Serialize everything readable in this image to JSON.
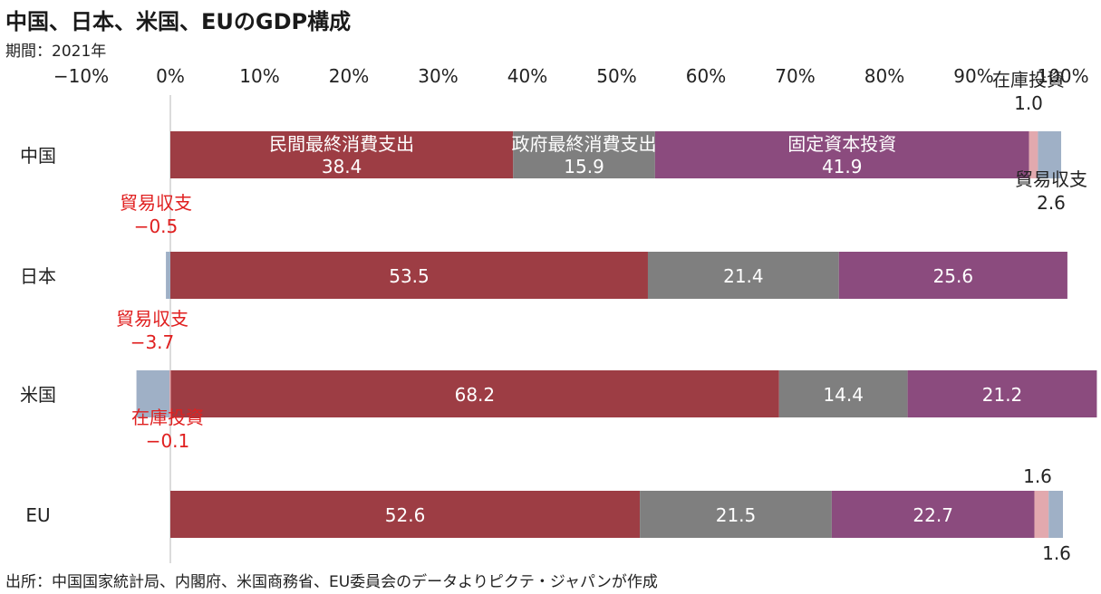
{
  "title": "中国、日本、米国、EUのGDP構成",
  "period": "期間：2021年",
  "source": "出所：中国国家統計局、内閣府、米国商務省、EU委員会のデータよりピクテ・ジャパンが作成",
  "colors": {
    "private_consumption": "#9d3d44",
    "government_consumption": "#7f7f7f",
    "fixed_investment": "#8b4b7e",
    "inventory": "#e2a9ae",
    "trade": "#9fb0c6",
    "axis": "#cfcfcf",
    "annotation_red": "#e02020"
  },
  "chart_data": {
    "type": "bar",
    "orientation": "horizontal",
    "stacked": true,
    "xlim": [
      -10,
      100
    ],
    "xticks": [
      -10,
      0,
      10,
      20,
      30,
      40,
      50,
      60,
      70,
      80,
      90,
      100
    ],
    "xtick_labels": [
      "−10%",
      "0%",
      "10%",
      "20%",
      "30%",
      "40%",
      "50%",
      "60%",
      "70%",
      "80%",
      "90%",
      "100%"
    ],
    "categories": [
      "中国",
      "日本",
      "米国",
      "EU"
    ],
    "series": [
      {
        "key": "private_consumption",
        "name": "民間最終消費支出",
        "values": [
          38.4,
          53.5,
          68.2,
          52.6
        ]
      },
      {
        "key": "government_consumption",
        "name": "政府最終消費支出",
        "values": [
          15.9,
          21.4,
          14.4,
          21.5
        ]
      },
      {
        "key": "fixed_investment",
        "name": "固定資本投資",
        "values": [
          41.9,
          25.6,
          21.2,
          22.7
        ]
      },
      {
        "key": "inventory",
        "name": "在庫投資",
        "values": [
          1.0,
          0.0,
          -0.1,
          1.6
        ]
      },
      {
        "key": "trade",
        "name": "貿易収支",
        "values": [
          2.6,
          -0.5,
          -3.7,
          1.6
        ]
      }
    ],
    "segment_labels": [
      {
        "bar": 0,
        "series": 0,
        "name": "民間最終消費支出",
        "value": "38.4"
      },
      {
        "bar": 0,
        "series": 1,
        "name": "政府最終消費支出",
        "value": "15.9"
      },
      {
        "bar": 0,
        "series": 2,
        "name": "固定資本投資",
        "value": "41.9"
      },
      {
        "bar": 1,
        "series": 0,
        "value": "53.5"
      },
      {
        "bar": 1,
        "series": 1,
        "value": "21.4"
      },
      {
        "bar": 1,
        "series": 2,
        "value": "25.6"
      },
      {
        "bar": 2,
        "series": 0,
        "value": "68.2"
      },
      {
        "bar": 2,
        "series": 1,
        "value": "14.4"
      },
      {
        "bar": 2,
        "series": 2,
        "value": "21.2"
      },
      {
        "bar": 3,
        "series": 0,
        "value": "52.6"
      },
      {
        "bar": 3,
        "series": 1,
        "value": "21.5"
      },
      {
        "bar": 3,
        "series": 2,
        "value": "22.7"
      }
    ],
    "annotations": [
      {
        "bar": 0,
        "series": 3,
        "lines": [
          "在庫投資",
          "1.0"
        ],
        "side": "above",
        "color": "dark"
      },
      {
        "bar": 0,
        "series": 4,
        "lines": [
          "貿易収支",
          "2.6"
        ],
        "side": "below",
        "color": "dark"
      },
      {
        "bar": 1,
        "series": 4,
        "lines": [
          "貿易収支",
          "−0.5"
        ],
        "side": "above",
        "color": "red"
      },
      {
        "bar": 2,
        "series": 4,
        "lines": [
          "貿易収支",
          "−3.7"
        ],
        "side": "above",
        "color": "red"
      },
      {
        "bar": 2,
        "series": 3,
        "lines": [
          "在庫投資",
          "−0.1"
        ],
        "side": "below",
        "color": "red"
      },
      {
        "bar": 3,
        "series": 3,
        "lines": [
          "1.6"
        ],
        "side": "above",
        "color": "dark"
      },
      {
        "bar": 3,
        "series": 4,
        "lines": [
          "1.6"
        ],
        "side": "below",
        "color": "dark"
      }
    ]
  }
}
